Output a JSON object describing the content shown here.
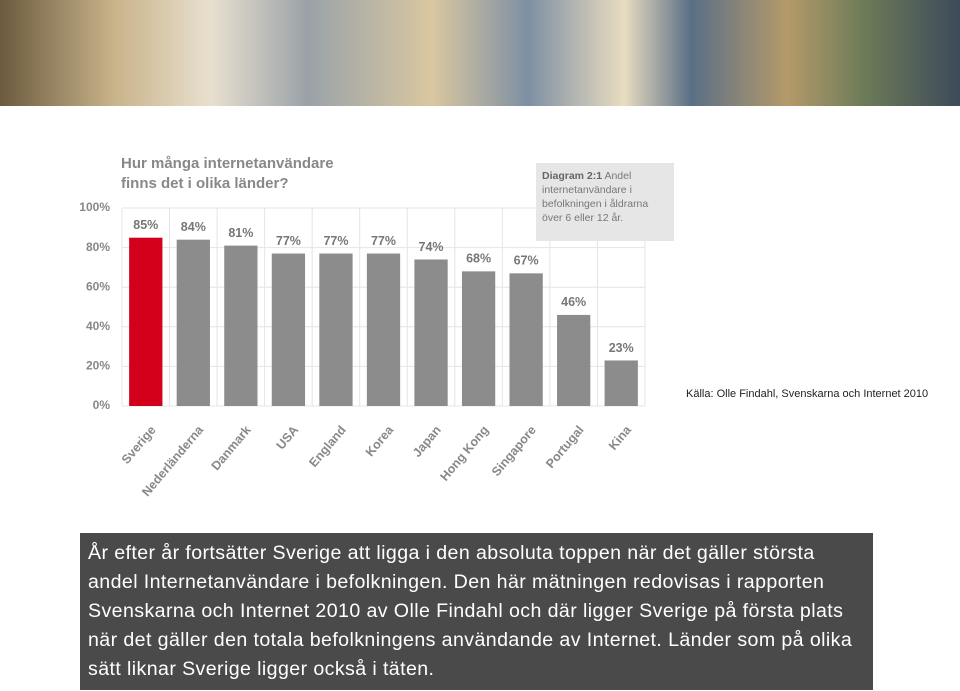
{
  "chart_data": {
    "type": "bar",
    "title": [
      "Hur många internetanvändare",
      "finns det i olika länder?"
    ],
    "note": {
      "heading": "Diagram 2:1",
      "text": "Andel internetanvändare i befolkningen i åldrarna över 6 eller 12 år."
    },
    "categories": [
      "Sverige",
      "Nederländerna",
      "Danmark",
      "USA",
      "England",
      "Korea",
      "Japan",
      "Hong Kong",
      "Singapore",
      "Portugal",
      "Kina"
    ],
    "values": [
      85,
      84,
      81,
      77,
      77,
      77,
      74,
      68,
      67,
      46,
      23
    ],
    "value_labels": [
      "85%",
      "84%",
      "81%",
      "77%",
      "77%",
      "77%",
      "74%",
      "68%",
      "67%",
      "46%",
      "23%"
    ],
    "colors": [
      "#d3001c",
      "#8c8c8c",
      "#8c8c8c",
      "#8c8c8c",
      "#8c8c8c",
      "#8c8c8c",
      "#8c8c8c",
      "#8c8c8c",
      "#8c8c8c",
      "#8c8c8c",
      "#8c8c8c"
    ],
    "ylim": [
      0,
      100
    ],
    "yticks": [
      {
        "value": 0,
        "label": "0%"
      },
      {
        "value": 20,
        "label": "20%"
      },
      {
        "value": 40,
        "label": "40%"
      },
      {
        "value": 60,
        "label": "60%"
      },
      {
        "value": 80,
        "label": "80%"
      },
      {
        "value": 100,
        "label": "100%"
      }
    ],
    "grid": true
  },
  "source": "Källa: Olle Findahl, Svenskarna och Internet 2010",
  "body_text": "År efter år fortsätter Sverige att ligga i den absoluta toppen när det gäller största andel Internetanvändare i befolkningen. Den här mätningen redovisas i rapporten Svenskarna och Internet 2010 av Olle Findahl och där ligger Sverige på första plats när det gäller den totala befolkningens användande av Internet. Länder som på olika sätt liknar Sverige ligger också i täten."
}
